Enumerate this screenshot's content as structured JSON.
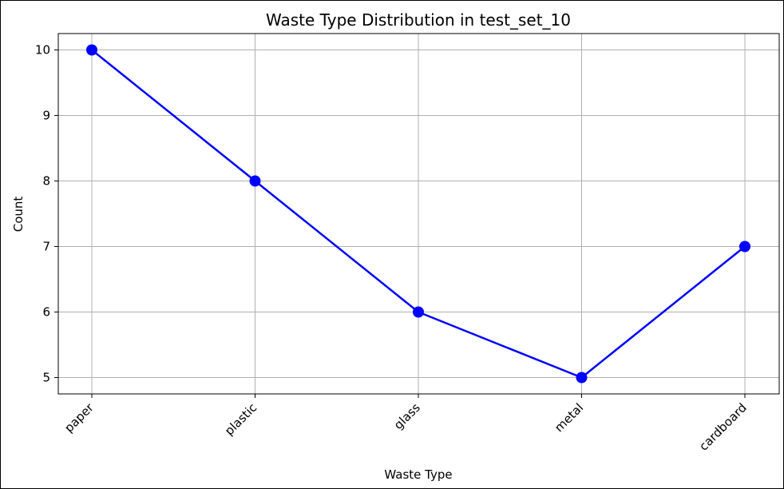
{
  "chart_data": {
    "type": "line",
    "title": "Waste Type Distribution in test_set_10",
    "xlabel": "Waste Type",
    "ylabel": "Count",
    "categories": [
      "paper",
      "plastic",
      "glass",
      "metal",
      "cardboard"
    ],
    "series": [
      {
        "values": [
          10,
          8,
          6,
          5,
          7
        ],
        "color": "#0000ff",
        "marker": "circle"
      }
    ],
    "yticks": [
      5,
      6,
      7,
      8,
      9,
      10
    ],
    "ylim": [
      4.75,
      10.25
    ],
    "grid": true,
    "x_tick_rotation_deg": 45
  }
}
